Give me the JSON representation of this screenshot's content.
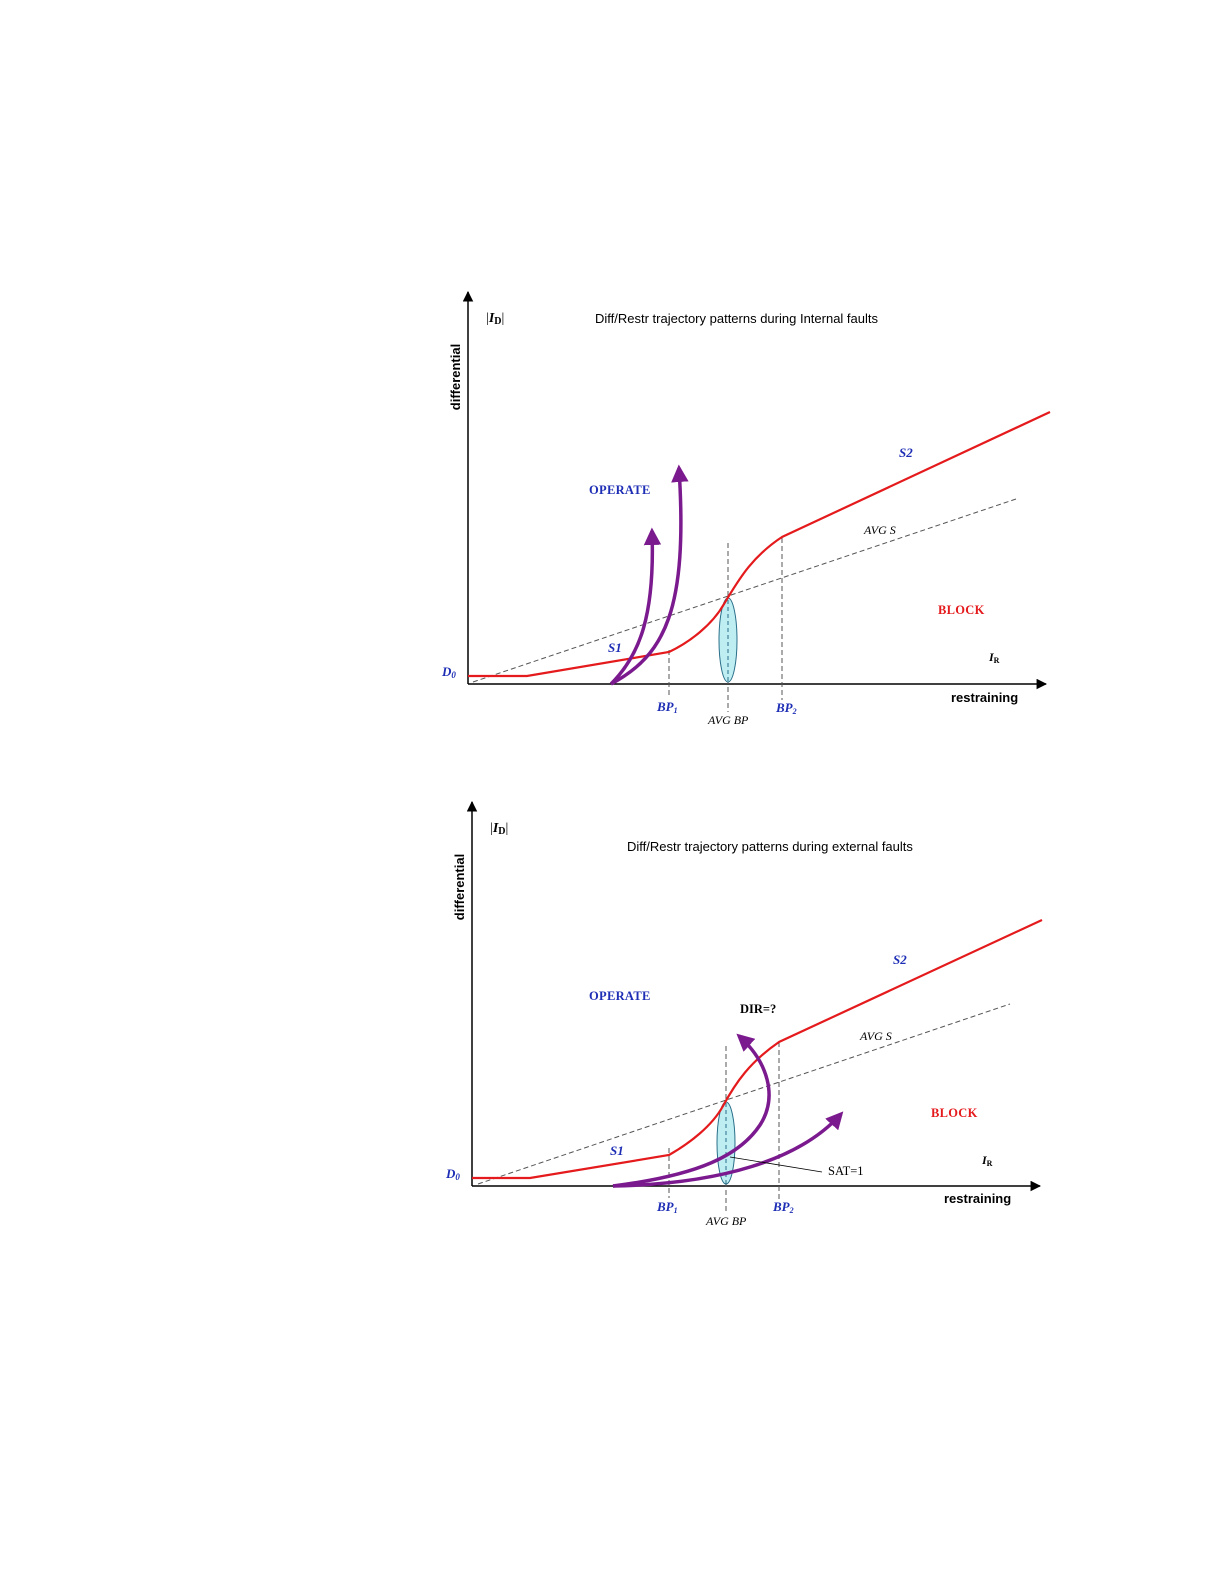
{
  "colors": {
    "characteristic": "#e41a1c",
    "trajectory": "#7b1a8e",
    "label_blue": "#1f2fb5",
    "label_red": "#e41a1c",
    "ellipse_fill": "#bfeef2",
    "axis": "#000000",
    "dashed": "#555555"
  },
  "diagram_internal": {
    "title": "Diff/Restr trajectory patterns during Internal faults",
    "y_axis_symbol_base": "I",
    "y_axis_symbol_sub": "D",
    "y_axis_label": "differential",
    "x_axis_label": "restraining",
    "x_axis_symbol_base": "I",
    "x_axis_symbol_sub": "R",
    "operate_label": "OPERATE",
    "block_label": "BLOCK",
    "d0_label": "D",
    "d0_sub": "0",
    "s1_label": "S1",
    "s2_label": "S2",
    "avg_s_label": "AVG S",
    "bp1_base": "BP",
    "bp1_sub": "1",
    "bp2_base": "BP",
    "bp2_sub": "2",
    "avg_bp_label": "AVG BP"
  },
  "diagram_external": {
    "title": "Diff/Restr trajectory patterns during external faults",
    "y_axis_symbol_base": "I",
    "y_axis_symbol_sub": "D",
    "y_axis_label": "differential",
    "x_axis_label": "restraining",
    "x_axis_symbol_base": "I",
    "x_axis_symbol_sub": "R",
    "operate_label": "OPERATE",
    "block_label": "BLOCK",
    "d0_label": "D",
    "d0_sub": "0",
    "s1_label": "S1",
    "s2_label": "S2",
    "avg_s_label": "AVG S",
    "bp1_base": "BP",
    "bp1_sub": "1",
    "bp2_base": "BP",
    "bp2_sub": "2",
    "avg_bp_label": "AVG BP",
    "dir_label": "DIR=?",
    "sat_label": "SAT=1"
  }
}
